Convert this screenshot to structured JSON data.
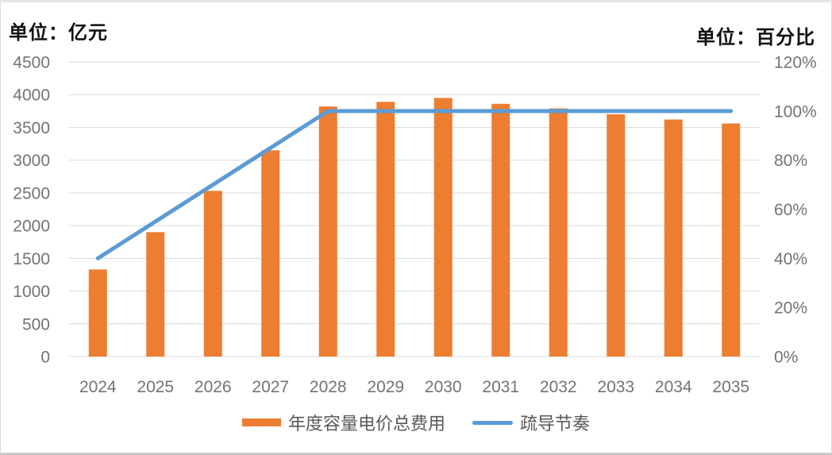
{
  "chart": {
    "left_unit": "单位：亿元",
    "right_unit": "单位：百分比",
    "legend": {
      "bar_label": "年度容量电价总费用",
      "line_label": "疏导节奏"
    }
  },
  "colors": {
    "bar": "#ED7D31",
    "line": "#5B9BD5",
    "grid": "#D9D9D9",
    "tick_text": "#737373",
    "unit_text": "#111111",
    "legend_text": "#595959",
    "background": "#FFFFFF"
  },
  "chart_data": {
    "type": "combo",
    "categories": [
      "2024",
      "2025",
      "2026",
      "2027",
      "2028",
      "2029",
      "2030",
      "2031",
      "2032",
      "2033",
      "2034",
      "2035"
    ],
    "series": [
      {
        "name": "年度容量电价总费用",
        "type": "bar",
        "axis": "left",
        "unit": "亿元",
        "values": [
          1330,
          1900,
          2530,
          3150,
          3820,
          3890,
          3950,
          3860,
          3790,
          3700,
          3620,
          3560
        ]
      },
      {
        "name": "疏导节奏",
        "type": "line",
        "axis": "right",
        "unit": "%",
        "values": [
          40,
          55,
          70,
          85,
          100,
          100,
          100,
          100,
          100,
          100,
          100,
          100
        ]
      }
    ],
    "left_axis": {
      "label": "单位：亿元",
      "min": 0,
      "max": 4500,
      "step": 500,
      "ticks": [
        0,
        500,
        1000,
        1500,
        2000,
        2500,
        3000,
        3500,
        4000,
        4500
      ]
    },
    "right_axis": {
      "label": "单位：百分比",
      "min": 0,
      "max": 120,
      "step": 20,
      "ticks": [
        "0%",
        "20%",
        "40%",
        "60%",
        "80%",
        "100%",
        "120%"
      ]
    },
    "grid": "horizontal",
    "legend_position": "bottom"
  }
}
